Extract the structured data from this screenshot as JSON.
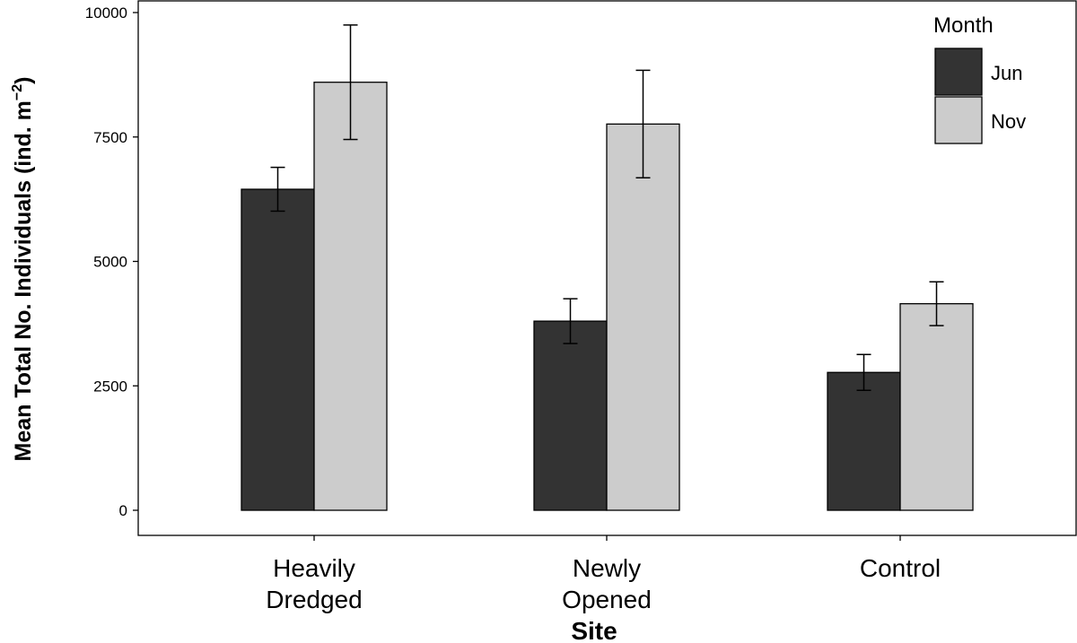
{
  "chart_data": {
    "type": "bar",
    "categories": [
      [
        "Heavily",
        "Dredged"
      ],
      [
        "Newly",
        "Opened"
      ],
      [
        "Control"
      ]
    ],
    "series": [
      {
        "name": "Jun",
        "values": [
          6450,
          3800,
          2770
        ],
        "error": [
          440,
          450,
          360
        ],
        "color": "#333333"
      },
      {
        "name": "Nov",
        "values": [
          8600,
          7760,
          4150
        ],
        "error": [
          1150,
          1080,
          440
        ],
        "color": "#cccccc"
      }
    ],
    "xlabel": "Site",
    "ylabel_main": "Mean Total No. Individuals (ind. m",
    "ylabel_sup": "−2",
    "ylabel_close": ")",
    "yticks": [
      "0",
      "2500",
      "5000",
      "7500",
      "10000"
    ],
    "ylim": [
      0,
      10000
    ],
    "legend_title": "Month",
    "legend_position": "top-right",
    "grid": false
  }
}
